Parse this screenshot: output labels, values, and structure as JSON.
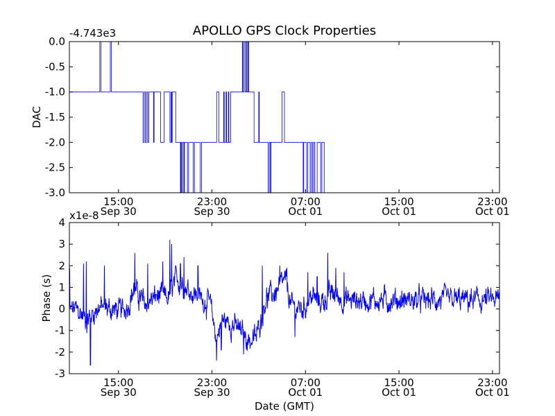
{
  "figure": {
    "title": "APOLLO GPS Clock Properties",
    "xlabel": "Date (GMT)"
  },
  "colors": {
    "series": "#0000ff",
    "axes": "#000000",
    "background": "#ffffff"
  },
  "chart_data": [
    {
      "type": "line",
      "name": "dac",
      "title": "APOLLO GPS Clock Properties",
      "ylabel": "DAC",
      "y_offset_label": "-4.743e3",
      "xlabel": "",
      "x_range_hours": [
        10.8,
        23.6
      ],
      "ylim": [
        -3.0,
        0.0
      ],
      "yticks": [
        0.0,
        -0.5,
        -1.0,
        -1.5,
        -2.0,
        -2.5,
        -3.0
      ],
      "ytick_labels": [
        "0.0",
        "-0.5",
        "-1.0",
        "-1.5",
        "-2.0",
        "-2.5",
        "-3.0"
      ],
      "xticks": [
        {
          "time": "15:00",
          "date": "Sep 30"
        },
        {
          "time": "23:00",
          "date": "Sep 30"
        },
        {
          "time": "07:00",
          "date": "Oct 01"
        },
        {
          "time": "15:00",
          "date": "Oct 01"
        },
        {
          "time": "23:00",
          "date": "Oct 01"
        }
      ],
      "steps": [
        [
          -1.0,
          0.0
        ],
        [
          0.0,
          -1.0
        ],
        [
          2.6,
          0.0
        ],
        [
          2.7,
          -1.0
        ],
        [
          3.5,
          0.0
        ],
        [
          3.6,
          -1.0
        ],
        [
          6.3,
          -2.0
        ],
        [
          6.4,
          -1.0
        ],
        [
          6.5,
          -2.0
        ],
        [
          6.6,
          -1.0
        ],
        [
          6.7,
          -2.0
        ],
        [
          6.8,
          -1.0
        ],
        [
          7.2,
          -2.0
        ],
        [
          7.25,
          -1.0
        ],
        [
          7.8,
          -2.0
        ],
        [
          8.1,
          -1.0
        ],
        [
          8.6,
          -2.0
        ],
        [
          8.7,
          -1.0
        ],
        [
          8.75,
          -2.0
        ],
        [
          8.8,
          -1.0
        ],
        [
          9.1,
          -2.0
        ],
        [
          9.5,
          -3.0
        ],
        [
          9.55,
          -2.0
        ],
        [
          9.6,
          -3.0
        ],
        [
          9.7,
          -2.0
        ],
        [
          9.8,
          -3.0
        ],
        [
          9.85,
          -2.0
        ],
        [
          10.1,
          -3.0
        ],
        [
          10.2,
          -2.0
        ],
        [
          10.6,
          -3.0
        ],
        [
          10.7,
          -2.0
        ],
        [
          11.2,
          -3.0
        ],
        [
          11.3,
          -2.0
        ],
        [
          12.6,
          -1.0
        ],
        [
          12.8,
          -2.0
        ],
        [
          13.2,
          -1.0
        ],
        [
          13.25,
          -2.0
        ],
        [
          13.4,
          -1.0
        ],
        [
          13.45,
          -2.0
        ],
        [
          13.6,
          -1.0
        ],
        [
          13.65,
          -2.0
        ],
        [
          13.8,
          -1.0
        ],
        [
          14.8,
          0.0
        ],
        [
          14.85,
          -1.0
        ],
        [
          14.95,
          0.0
        ],
        [
          15.05,
          -1.0
        ],
        [
          15.15,
          0.0
        ],
        [
          15.2,
          -1.0
        ],
        [
          15.3,
          0.0
        ],
        [
          15.35,
          -1.0
        ],
        [
          15.8,
          -2.0
        ],
        [
          16.2,
          -1.0
        ],
        [
          16.25,
          -2.0
        ],
        [
          17.0,
          -3.0
        ],
        [
          17.1,
          -2.0
        ],
        [
          17.2,
          -3.0
        ],
        [
          17.25,
          -2.0
        ],
        [
          18.2,
          -1.0
        ],
        [
          18.4,
          -2.0
        ],
        [
          20.0,
          -3.0
        ],
        [
          20.05,
          -2.0
        ],
        [
          20.3,
          -3.0
        ],
        [
          20.4,
          -2.0
        ],
        [
          20.6,
          -3.0
        ],
        [
          20.7,
          -2.0
        ],
        [
          20.8,
          -3.0
        ],
        [
          20.9,
          -2.0
        ],
        [
          21.0,
          -3.0
        ],
        [
          21.2,
          -2.0
        ],
        [
          21.5,
          -3.0
        ],
        [
          21.6,
          -2.0
        ],
        [
          21.8,
          -3.0
        ]
      ]
    },
    {
      "type": "line",
      "name": "phase",
      "title": "",
      "ylabel": "Phase (s)",
      "y_offset_label": "x1e-8",
      "xlabel": "Date (GMT)",
      "x_range_hours": [
        10.8,
        23.6
      ],
      "ylim": [
        -3,
        4
      ],
      "yticks": [
        4,
        3,
        2,
        1,
        0,
        -1,
        -2,
        -3
      ],
      "ytick_labels": [
        "4",
        "3",
        "2",
        "1",
        "0",
        "-1",
        "-2",
        "-3"
      ],
      "xticks": [
        {
          "time": "15:00",
          "date": "Sep 30"
        },
        {
          "time": "23:00",
          "date": "Sep 30"
        },
        {
          "time": "07:00",
          "date": "Oct 01"
        },
        {
          "time": "15:00",
          "date": "Oct 01"
        },
        {
          "time": "23:00",
          "date": "Oct 01"
        }
      ],
      "trend": [
        [
          -1.0,
          -0.3
        ],
        [
          0.5,
          0.0
        ],
        [
          1.5,
          -0.5
        ],
        [
          2.5,
          0.1
        ],
        [
          3.5,
          0.0
        ],
        [
          4.5,
          -0.1
        ],
        [
          5.0,
          0.2
        ],
        [
          5.5,
          0.9
        ],
        [
          6.5,
          0.2
        ],
        [
          7.5,
          0.6
        ],
        [
          8.5,
          0.5
        ],
        [
          9.2,
          1.4
        ],
        [
          10.0,
          1.0
        ],
        [
          11.0,
          0.6
        ],
        [
          11.5,
          0.4
        ],
        [
          12.0,
          0.3
        ],
        [
          12.6,
          -1.4
        ],
        [
          13.0,
          -0.5
        ],
        [
          14.0,
          -0.7
        ],
        [
          15.5,
          -1.5
        ],
        [
          16.0,
          -1.3
        ],
        [
          16.8,
          0.5
        ],
        [
          17.5,
          0.7
        ],
        [
          18.0,
          1.0
        ],
        [
          18.5,
          1.3
        ],
        [
          19.0,
          0.1
        ],
        [
          20.0,
          0.0
        ],
        [
          20.7,
          0.6
        ],
        [
          21.5,
          0.3
        ],
        [
          22.5,
          0.7
        ],
        [
          23.6,
          0.4
        ]
      ],
      "spikes": [
        [
          0.02,
          1.9
        ],
        [
          1.2,
          2.1
        ],
        [
          1.45,
          2.2
        ],
        [
          1.8,
          -2.6
        ],
        [
          3.0,
          2.0
        ],
        [
          5.6,
          2.6
        ],
        [
          6.7,
          2.1
        ],
        [
          8.0,
          2.2
        ],
        [
          8.6,
          3.2
        ],
        [
          8.75,
          3.0
        ],
        [
          9.5,
          2.1
        ],
        [
          9.8,
          2.4
        ],
        [
          11.0,
          2.0
        ],
        [
          12.6,
          -2.4
        ],
        [
          13.0,
          -1.9
        ],
        [
          14.9,
          -2.1
        ],
        [
          16.5,
          2.0
        ],
        [
          18.0,
          2.0
        ],
        [
          18.6,
          1.9
        ],
        [
          19.3,
          -1.3
        ],
        [
          20.4,
          1.7
        ],
        [
          21.2,
          1.5
        ],
        [
          22.1,
          2.6
        ],
        [
          22.8,
          1.9
        ],
        [
          23.5,
          1.7
        ]
      ],
      "noise_amplitude": 0.45
    }
  ]
}
